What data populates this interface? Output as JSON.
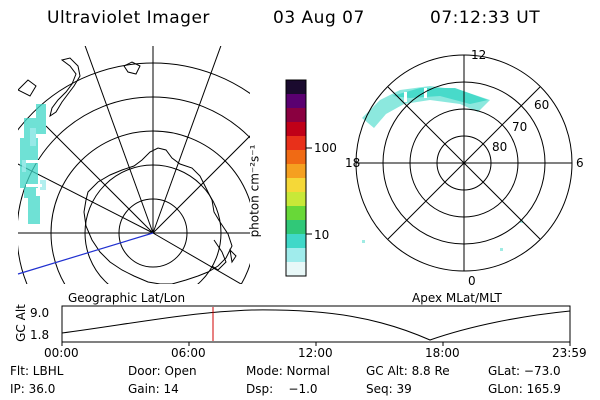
{
  "header": {
    "instrument": "Ultraviolet Imager",
    "date": "03 Aug 07",
    "time": "07:12:33 UT"
  },
  "left_panel": {
    "caption": "Geographic Lat/Lon"
  },
  "right_panel": {
    "caption": "Apex MLat/MLT",
    "mlt_labels": {
      "top": "12",
      "right": "6",
      "bottom": "0",
      "left": "18"
    },
    "mlat_labels": [
      "60",
      "70",
      "80"
    ]
  },
  "colorbar": {
    "unit_label": "photon cm⁻²s⁻¹",
    "ticks": [
      "100",
      "10"
    ],
    "colors": [
      "#1a0a2e",
      "#5a0070",
      "#8a0040",
      "#c00018",
      "#e8301a",
      "#f06a14",
      "#f5a020",
      "#f5d838",
      "#c8e838",
      "#68d838",
      "#30c878",
      "#40d8c8",
      "#a0ecec",
      "#e8f8f8"
    ]
  },
  "altitude_plot": {
    "ylabel": "GC Alt",
    "yticks": [
      "9.0",
      "1.8"
    ],
    "xticks": [
      "00:00",
      "06:00",
      "12:00",
      "18:00",
      "23:59"
    ],
    "current_time_marker": "07:12"
  },
  "metadata": {
    "flt": "Flt: LBHL",
    "door": "Door: Open",
    "mode": "Mode: Normal",
    "gc_alt": "GC Alt: 8.8 Re",
    "glat": "GLat: −73.0",
    "ip": "IP: 36.0",
    "gain": "Gain: 14",
    "dsp": "Dsp:    −1.0",
    "seq": "Seq: 39",
    "glon": "GLon: 165.9"
  },
  "colors": {
    "accent": "#000000",
    "marker": "#d00000",
    "aurora": "#40d8c8"
  }
}
